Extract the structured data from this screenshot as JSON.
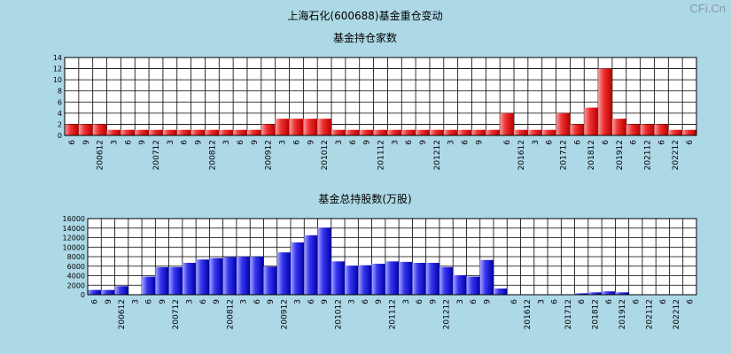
{
  "watermark": "CFi.Cn",
  "main_title": "上海石化(600688)基金重仓变动",
  "chart_data": [
    {
      "type": "bar",
      "title": "基金持仓家数",
      "ylim": [
        0,
        14
      ],
      "yticks": [
        0,
        2,
        4,
        6,
        8,
        10,
        12,
        14
      ],
      "grid": true,
      "bar_color": "red",
      "x": [
        "6",
        "9",
        "200612",
        "3",
        "6",
        "9",
        "200712",
        "3",
        "6",
        "9",
        "200812",
        "3",
        "6",
        "9",
        "200912",
        "3",
        "6",
        "9",
        "201012",
        "3",
        "6",
        "9",
        "201112",
        "3",
        "6",
        "9",
        "201212",
        "3",
        "6",
        "9",
        "",
        "6",
        "201612",
        "3",
        "6",
        "201712",
        "6",
        "201812",
        "6",
        "201912",
        "6",
        "202112",
        "6",
        "202212",
        "6"
      ],
      "values": [
        2,
        2,
        2,
        1,
        1,
        1,
        1,
        1,
        1,
        1,
        1,
        1,
        1,
        1,
        2,
        3,
        3,
        3,
        3,
        1,
        1,
        1,
        1,
        1,
        1,
        1,
        1,
        1,
        1,
        1,
        1,
        4,
        1,
        1,
        1,
        4,
        2,
        5,
        12,
        3,
        2,
        2,
        2,
        1,
        1
      ]
    },
    {
      "type": "bar",
      "title": "基金总持股数(万股)",
      "ylim": [
        0,
        16000
      ],
      "yticks": [
        0,
        2000,
        4000,
        6000,
        8000,
        10000,
        12000,
        14000,
        16000
      ],
      "grid": true,
      "bar_color": "blue",
      "x": [
        "6",
        "9",
        "200612",
        "3",
        "6",
        "9",
        "200712",
        "3",
        "6",
        "9",
        "200812",
        "3",
        "6",
        "9",
        "200912",
        "3",
        "6",
        "9",
        "201012",
        "3",
        "6",
        "9",
        "201112",
        "3",
        "6",
        "9",
        "201212",
        "3",
        "6",
        "9",
        "",
        "6",
        "201612",
        "3",
        "6",
        "201712",
        "6",
        "201812",
        "6",
        "201912",
        "6",
        "202112",
        "6",
        "202212",
        "6"
      ],
      "values": [
        1000,
        1000,
        1800,
        0,
        3800,
        5800,
        5800,
        6700,
        7400,
        7700,
        7900,
        8000,
        8000,
        5900,
        8900,
        11000,
        12500,
        14100,
        7000,
        6100,
        6200,
        6500,
        7000,
        6900,
        6700,
        6700,
        5800,
        4100,
        3800,
        7300,
        1300,
        0,
        0,
        0,
        0,
        0,
        300,
        500,
        700,
        500,
        0,
        0,
        0,
        0,
        0
      ]
    }
  ]
}
